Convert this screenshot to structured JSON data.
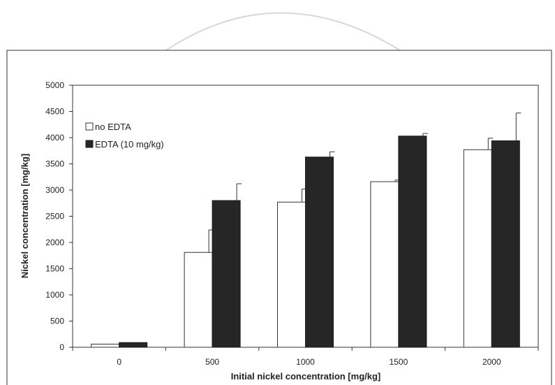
{
  "chart_data": {
    "type": "bar",
    "title": "",
    "xlabel": "Initial nickel concentration [mg/kg]",
    "ylabel": "Nickel concentration [mg/kg]",
    "categories": [
      "0",
      "500",
      "1000",
      "1500",
      "2000"
    ],
    "ylim": [
      0,
      5000
    ],
    "yticks": [
      0,
      500,
      1000,
      1500,
      2000,
      2500,
      3000,
      3500,
      4000,
      4500,
      5000
    ],
    "grid": false,
    "legend_position": "top-left",
    "series": [
      {
        "name": "no EDTA",
        "color": "#ffffff",
        "stroke": "#333333",
        "values": [
          60,
          1810,
          2770,
          3160,
          3770
        ],
        "errors": [
          0,
          430,
          250,
          30,
          220
        ]
      },
      {
        "name": "EDTA (10 mg/kg)",
        "color": "#262626",
        "stroke": "#1a1a1a",
        "values": [
          90,
          2800,
          3630,
          4030,
          3940
        ],
        "errors": [
          0,
          320,
          100,
          50,
          530
        ]
      }
    ]
  }
}
